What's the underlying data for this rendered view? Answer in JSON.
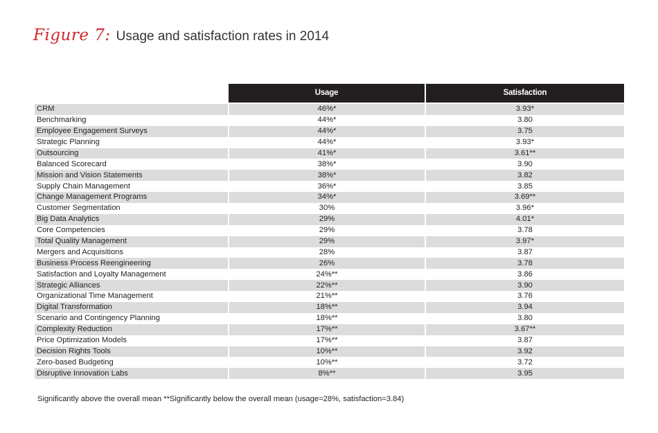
{
  "figure": {
    "label": "Figure 7:",
    "title": "Usage and satisfaction rates in 2014"
  },
  "chart_data": {
    "type": "table",
    "title": "Usage and satisfaction rates in 2014",
    "columns": [
      "",
      "Usage",
      "Satisfaction"
    ],
    "rows": [
      {
        "tool": "CRM",
        "usage": "46%*",
        "satisfaction": "3.93*"
      },
      {
        "tool": "Benchmarking",
        "usage": "44%*",
        "satisfaction": "3.80"
      },
      {
        "tool": "Employee Engagement Surveys",
        "usage": "44%*",
        "satisfaction": "3.75"
      },
      {
        "tool": "Strategic Planning",
        "usage": "44%*",
        "satisfaction": "3.93*"
      },
      {
        "tool": "Outsourcing",
        "usage": "41%*",
        "satisfaction": "3.61**"
      },
      {
        "tool": "Balanced Scorecard",
        "usage": "38%*",
        "satisfaction": "3.90"
      },
      {
        "tool": "Mission and Vision Statements",
        "usage": "38%*",
        "satisfaction": "3.82"
      },
      {
        "tool": "Supply Chain Management",
        "usage": "36%*",
        "satisfaction": "3.85"
      },
      {
        "tool": "Change Management Programs",
        "usage": "34%*",
        "satisfaction": "3.69**"
      },
      {
        "tool": "Customer Segmentation",
        "usage": "30%",
        "satisfaction": "3.96*"
      },
      {
        "tool": "Big Data Analytics",
        "usage": "29%",
        "satisfaction": "4.01*"
      },
      {
        "tool": "Core Competencies",
        "usage": "29%",
        "satisfaction": "3.78"
      },
      {
        "tool": "Total Quality Management",
        "usage": "29%",
        "satisfaction": "3.97*"
      },
      {
        "tool": "Mergers and Acquisitions",
        "usage": "28%",
        "satisfaction": "3.87"
      },
      {
        "tool": "Business Process Reengineering",
        "usage": "26%",
        "satisfaction": "3.78"
      },
      {
        "tool": "Satisfaction and Loyalty Management",
        "usage": "24%**",
        "satisfaction": "3.86"
      },
      {
        "tool": "Strategic Alliances",
        "usage": "22%**",
        "satisfaction": "3.90"
      },
      {
        "tool": "Organizational Time Management",
        "usage": "21%**",
        "satisfaction": "3.76"
      },
      {
        "tool": "Digital Transformation",
        "usage": "18%**",
        "satisfaction": "3.94"
      },
      {
        "tool": "Scenario and Contingency Planning",
        "usage": "18%**",
        "satisfaction": "3.80"
      },
      {
        "tool": "Complexity Reduction",
        "usage": "17%**",
        "satisfaction": "3.67**"
      },
      {
        "tool": "Price Optimization Models",
        "usage": "17%**",
        "satisfaction": "3.87"
      },
      {
        "tool": "Decision Rights Tools",
        "usage": "10%**",
        "satisfaction": "3.92"
      },
      {
        "tool": "Zero-based Budgeting",
        "usage": "10%**",
        "satisfaction": "3.72"
      },
      {
        "tool": "Disruptive Innovation Labs",
        "usage": "8%**",
        "satisfaction": "3.95"
      }
    ],
    "footnote": "Significantly above the overall mean  **Significantly below the overall mean (usage=28%, satisfaction=3.84)"
  },
  "colors": {
    "figure_label": "#d0262c",
    "header_bg": "#231f20",
    "stripe": "#dcdcdc"
  }
}
